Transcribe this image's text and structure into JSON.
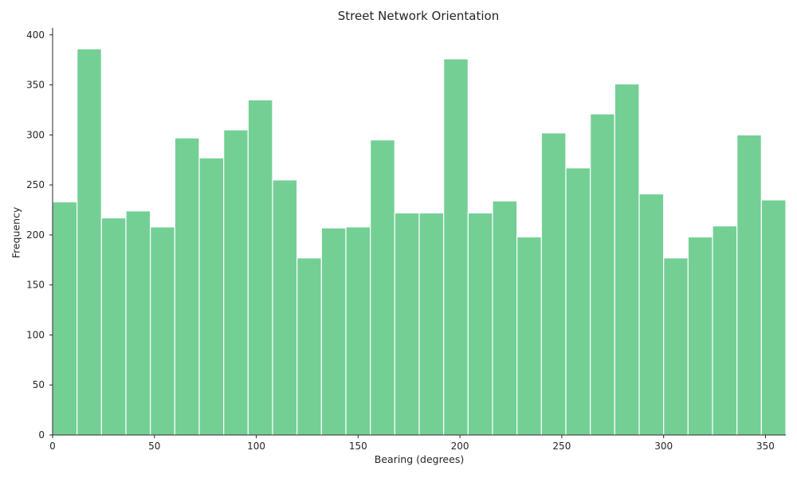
{
  "chart_data": {
    "type": "bar",
    "title": "Street Network Orientation",
    "xlabel": "Bearing (degrees)",
    "ylabel": "Frequency",
    "xlim": [
      0,
      360
    ],
    "ylim": [
      0,
      407
    ],
    "xticks": [
      0,
      50,
      100,
      150,
      200,
      250,
      300,
      350
    ],
    "yticks": [
      0,
      50,
      100,
      150,
      200,
      250,
      300,
      350,
      400
    ],
    "bin_width": 12,
    "bin_edges_start": [
      0,
      12,
      24,
      36,
      48,
      60,
      72,
      84,
      96,
      108,
      120,
      132,
      144,
      156,
      168,
      180,
      192,
      204,
      216,
      228,
      240,
      252,
      264,
      276,
      288,
      300,
      312,
      324,
      336,
      348
    ],
    "values": [
      233,
      386,
      217,
      224,
      208,
      297,
      277,
      305,
      335,
      255,
      177,
      207,
      208,
      295,
      222,
      222,
      376,
      222,
      234,
      198,
      302,
      267,
      321,
      351,
      241,
      177,
      198,
      209,
      300,
      235
    ],
    "bar_color": "#74cf95",
    "bar_edge_color": "#ffffff",
    "grid": false
  }
}
